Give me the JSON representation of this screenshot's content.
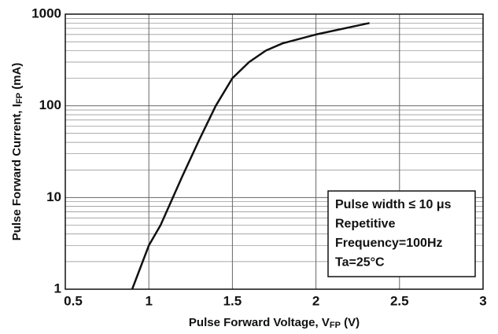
{
  "chart_data": {
    "type": "line",
    "x_label": [
      "Pulse Forward Voltage, V",
      "FP",
      " (V)"
    ],
    "y_label": [
      "Pulse Forward Current, I",
      "FP",
      " (mA)"
    ],
    "annotation": [
      "Pulse width ≤ 10 μs",
      "Repetitive",
      "Frequency=100Hz",
      "Ta=25°C"
    ],
    "x": [
      0.9,
      1.0,
      1.07,
      1.2,
      1.3,
      1.4,
      1.5,
      1.6,
      1.7,
      1.8,
      2.0,
      2.32
    ],
    "series": [
      {
        "color": "#111111",
        "values": [
          1,
          3,
          5,
          17,
          42,
          100,
          200,
          300,
          400,
          480,
          600,
          800
        ]
      }
    ],
    "xlim": [
      0.5,
      3
    ],
    "xticks": [
      0.5,
      1,
      1.5,
      2,
      2.5,
      3
    ],
    "ylim": [
      1,
      1000
    ],
    "yticks": [
      1,
      10,
      100,
      1000
    ],
    "ylog": true,
    "y_minor_grid": [
      2,
      3,
      4,
      5,
      6,
      7,
      8,
      9,
      20,
      30,
      40,
      50,
      60,
      70,
      80,
      90,
      200,
      300,
      400,
      500,
      600,
      700,
      800,
      900
    ],
    "grid": true
  }
}
